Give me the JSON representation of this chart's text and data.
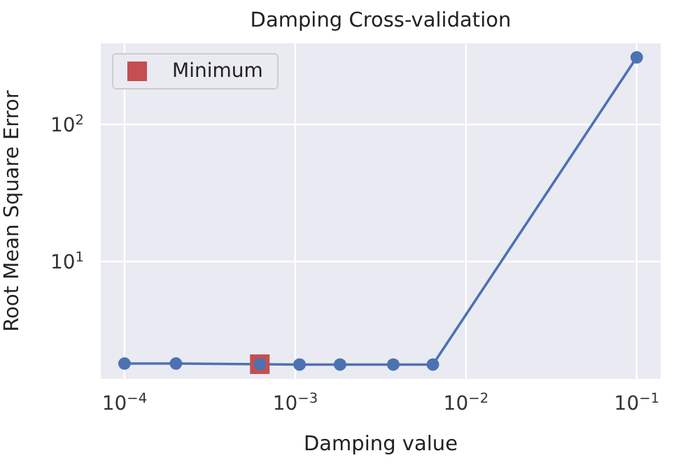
{
  "chart_data": {
    "type": "line",
    "title": "Damping Cross-validation",
    "xlabel": "Damping value",
    "ylabel": "Root Mean Square Error",
    "series": [
      {
        "color": "#4c72b0",
        "x": [
          0.0001,
          0.0002,
          0.00062,
          0.00106,
          0.00183,
          0.00375,
          0.0064,
          0.1
        ],
        "values": [
          1.8,
          1.8,
          1.78,
          1.77,
          1.77,
          1.77,
          1.77,
          309
        ]
      },
      {
        "type": "scatter",
        "name": "Minimum",
        "color": "#c44e52",
        "marker": "square",
        "x": [
          0.00062
        ],
        "values": [
          1.78
        ]
      }
    ],
    "marker": "circle",
    "log": "xy",
    "grid": true,
    "legend": "top left",
    "xlim": [
      7.26e-05,
      0.138
    ],
    "ylim": [
      1.39,
      391
    ],
    "xticks": [
      {
        "value": 0.0001,
        "label": "10$^{−4}$"
      },
      {
        "value": 0.001,
        "label": "10$^{−3}$"
      },
      {
        "value": 0.01,
        "label": "10$^{−2}$"
      },
      {
        "value": 0.1,
        "label": "10$^{−1}$"
      }
    ],
    "yticks": [
      {
        "value": 10,
        "label": "10$^{1}$"
      },
      {
        "value": 100,
        "label": "10$^{2}$"
      }
    ]
  }
}
